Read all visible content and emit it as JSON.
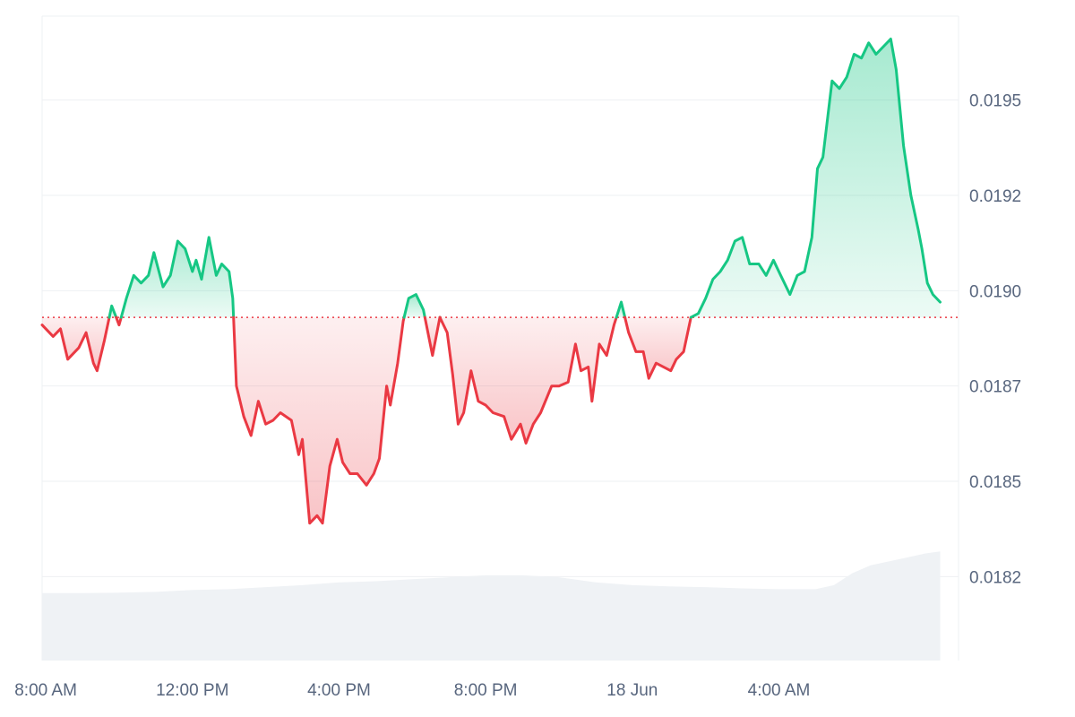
{
  "chart_data": {
    "type": "area",
    "title": "",
    "xlabel": "",
    "ylabel": "",
    "baseline": 0.01893,
    "ylim": [
      0.01803,
      0.01972
    ],
    "y_ticks": [
      "0.0195",
      "0.0192",
      "0.0190",
      "0.0187",
      "0.0185",
      "0.0182"
    ],
    "y_tick_values": [
      0.0195,
      0.01925,
      0.019,
      0.01875,
      0.0185,
      0.01825
    ],
    "x_ticks": [
      "8:00 AM",
      "12:00 PM",
      "4:00 PM",
      "8:00 PM",
      "18 Jun",
      "4:00 AM"
    ],
    "x_tick_hours": [
      8,
      12,
      16,
      20,
      24,
      28
    ],
    "x_range_hours": [
      7.9,
      32.9
    ],
    "colors": {
      "up_line": "#16c784",
      "down_line": "#ea3943",
      "up_fill": "#16c784",
      "down_fill": "#ea3943",
      "volume": "#eff2f5",
      "grid": "#eef0f3",
      "baseline": "#ea3943"
    },
    "price_series": {
      "name": "",
      "points": [
        [
          7.9,
          0.01891
        ],
        [
          8.2,
          0.01888
        ],
        [
          8.4,
          0.0189
        ],
        [
          8.6,
          0.01882
        ],
        [
          8.9,
          0.01885
        ],
        [
          9.1,
          0.01889
        ],
        [
          9.3,
          0.01881
        ],
        [
          9.4,
          0.01879
        ],
        [
          9.6,
          0.01887
        ],
        [
          9.8,
          0.01896
        ],
        [
          10.0,
          0.01891
        ],
        [
          10.2,
          0.01898
        ],
        [
          10.4,
          0.01904
        ],
        [
          10.6,
          0.01902
        ],
        [
          10.8,
          0.01904
        ],
        [
          10.95,
          0.0191
        ],
        [
          11.2,
          0.01901
        ],
        [
          11.4,
          0.01904
        ],
        [
          11.6,
          0.01913
        ],
        [
          11.8,
          0.01911
        ],
        [
          12.0,
          0.01905
        ],
        [
          12.1,
          0.01908
        ],
        [
          12.25,
          0.01903
        ],
        [
          12.45,
          0.01914
        ],
        [
          12.65,
          0.01904
        ],
        [
          12.8,
          0.01907
        ],
        [
          13.0,
          0.01905
        ],
        [
          13.1,
          0.01898
        ],
        [
          13.2,
          0.01875
        ],
        [
          13.4,
          0.01867
        ],
        [
          13.6,
          0.01862
        ],
        [
          13.8,
          0.01871
        ],
        [
          14.0,
          0.01865
        ],
        [
          14.2,
          0.01866
        ],
        [
          14.4,
          0.01868
        ],
        [
          14.7,
          0.01866
        ],
        [
          14.9,
          0.01857
        ],
        [
          15.0,
          0.01861
        ],
        [
          15.2,
          0.01839
        ],
        [
          15.4,
          0.01841
        ],
        [
          15.55,
          0.01839
        ],
        [
          15.75,
          0.01854
        ],
        [
          15.95,
          0.01861
        ],
        [
          16.1,
          0.01855
        ],
        [
          16.3,
          0.01852
        ],
        [
          16.5,
          0.01852
        ],
        [
          16.75,
          0.01849
        ],
        [
          16.95,
          0.01852
        ],
        [
          17.1,
          0.01856
        ],
        [
          17.3,
          0.01875
        ],
        [
          17.4,
          0.0187
        ],
        [
          17.6,
          0.01881
        ],
        [
          17.75,
          0.01892
        ],
        [
          17.9,
          0.01898
        ],
        [
          18.1,
          0.01899
        ],
        [
          18.3,
          0.01895
        ],
        [
          18.55,
          0.01883
        ],
        [
          18.75,
          0.01893
        ],
        [
          18.95,
          0.01889
        ],
        [
          19.1,
          0.01878
        ],
        [
          19.25,
          0.01865
        ],
        [
          19.4,
          0.01868
        ],
        [
          19.6,
          0.01879
        ],
        [
          19.8,
          0.01871
        ],
        [
          20.0,
          0.0187
        ],
        [
          20.2,
          0.01868
        ],
        [
          20.5,
          0.01867
        ],
        [
          20.7,
          0.01861
        ],
        [
          20.95,
          0.01865
        ],
        [
          21.1,
          0.0186
        ],
        [
          21.3,
          0.01865
        ],
        [
          21.5,
          0.01868
        ],
        [
          21.8,
          0.01875
        ],
        [
          22.0,
          0.01875
        ],
        [
          22.25,
          0.01876
        ],
        [
          22.45,
          0.01886
        ],
        [
          22.6,
          0.01879
        ],
        [
          22.8,
          0.0188
        ],
        [
          22.9,
          0.01871
        ],
        [
          23.1,
          0.01886
        ],
        [
          23.3,
          0.01883
        ],
        [
          23.5,
          0.01891
        ],
        [
          23.7,
          0.01897
        ],
        [
          23.9,
          0.01889
        ],
        [
          24.1,
          0.01884
        ],
        [
          24.3,
          0.01884
        ],
        [
          24.45,
          0.01877
        ],
        [
          24.65,
          0.01881
        ],
        [
          24.85,
          0.0188
        ],
        [
          25.05,
          0.01879
        ],
        [
          25.2,
          0.01882
        ],
        [
          25.4,
          0.01884
        ],
        [
          25.6,
          0.01893
        ],
        [
          25.8,
          0.01894
        ],
        [
          26.0,
          0.01898
        ],
        [
          26.2,
          0.01903
        ],
        [
          26.4,
          0.01905
        ],
        [
          26.6,
          0.01908
        ],
        [
          26.8,
          0.01913
        ],
        [
          27.0,
          0.01914
        ],
        [
          27.2,
          0.01907
        ],
        [
          27.45,
          0.01907
        ],
        [
          27.65,
          0.01904
        ],
        [
          27.85,
          0.01908
        ],
        [
          28.05,
          0.01904
        ],
        [
          28.3,
          0.01899
        ],
        [
          28.5,
          0.01904
        ],
        [
          28.7,
          0.01905
        ],
        [
          28.9,
          0.01914
        ],
        [
          29.05,
          0.01932
        ],
        [
          29.2,
          0.01935
        ],
        [
          29.45,
          0.01955
        ],
        [
          29.65,
          0.01953
        ],
        [
          29.85,
          0.01956
        ],
        [
          30.05,
          0.01962
        ],
        [
          30.25,
          0.01961
        ],
        [
          30.45,
          0.01965
        ],
        [
          30.65,
          0.01962
        ],
        [
          30.85,
          0.01964
        ],
        [
          31.05,
          0.01966
        ],
        [
          31.2,
          0.01958
        ],
        [
          31.4,
          0.01938
        ],
        [
          31.6,
          0.01925
        ],
        [
          31.8,
          0.01916
        ],
        [
          31.9,
          0.01911
        ],
        [
          32.05,
          0.01902
        ],
        [
          32.2,
          0.01899
        ],
        [
          32.4,
          0.01897
        ]
      ]
    },
    "volume_series": {
      "name": "",
      "points": [
        [
          7.9,
          0.17
        ],
        [
          9.0,
          0.17
        ],
        [
          10.0,
          0.171
        ],
        [
          11.0,
          0.173
        ],
        [
          12.0,
          0.178
        ],
        [
          13.0,
          0.18
        ],
        [
          14.0,
          0.185
        ],
        [
          15.0,
          0.19
        ],
        [
          16.0,
          0.197
        ],
        [
          17.0,
          0.2
        ],
        [
          18.0,
          0.205
        ],
        [
          19.0,
          0.21
        ],
        [
          20.0,
          0.215
        ],
        [
          21.0,
          0.215
        ],
        [
          22.0,
          0.21
        ],
        [
          23.0,
          0.197
        ],
        [
          24.0,
          0.19
        ],
        [
          25.0,
          0.187
        ],
        [
          26.0,
          0.185
        ],
        [
          27.0,
          0.182
        ],
        [
          28.0,
          0.18
        ],
        [
          29.0,
          0.18
        ],
        [
          29.5,
          0.19
        ],
        [
          30.0,
          0.22
        ],
        [
          30.5,
          0.24
        ],
        [
          31.0,
          0.25
        ],
        [
          31.5,
          0.26
        ],
        [
          32.0,
          0.27
        ],
        [
          32.4,
          0.275
        ]
      ]
    }
  }
}
